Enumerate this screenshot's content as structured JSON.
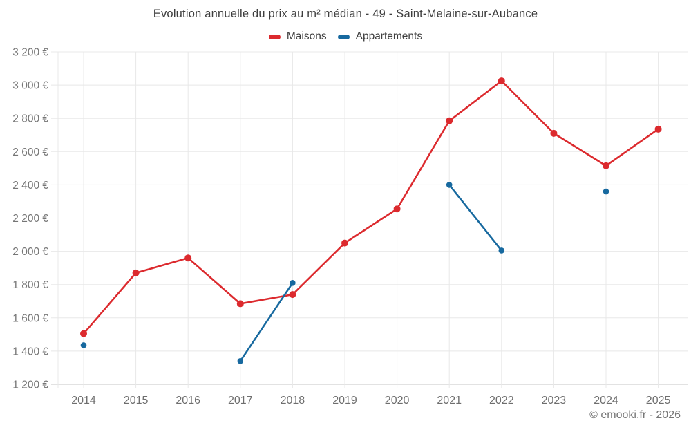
{
  "title": "Evolution annuelle du prix au m² médian - 49 - Saint-Melaine-sur-Aubance",
  "footer": "© emooki.fr - 2026",
  "colors": {
    "maisons": "#dc2a2e",
    "appartements": "#17699f",
    "grid": "#e8e8e8",
    "axis_line": "#c6c6c6",
    "tick_label": "#757575",
    "x_label": "#6e6e6e"
  },
  "legend": [
    {
      "id": "maisons",
      "label": "Maisons",
      "color": "#dc2a2e"
    },
    {
      "id": "appartements",
      "label": "Appartements",
      "color": "#17699f"
    }
  ],
  "chart_data": {
    "type": "line",
    "title": "Evolution annuelle du prix au m² médian - 49 - Saint-Melaine-sur-Aubance",
    "xlabel": "",
    "ylabel": "",
    "categories": [
      "2014",
      "2015",
      "2016",
      "2017",
      "2018",
      "2019",
      "2020",
      "2021",
      "2022",
      "2023",
      "2024",
      "2025"
    ],
    "series": [
      {
        "name": "Maisons",
        "color": "#dc2a2e",
        "values": [
          1505,
          1870,
          1960,
          1685,
          1740,
          2050,
          2255,
          2785,
          3025,
          2710,
          2515,
          2735
        ]
      },
      {
        "name": "Appartements",
        "color": "#17699f",
        "values": [
          1435,
          null,
          null,
          1340,
          1810,
          null,
          null,
          2400,
          2005,
          null,
          2360,
          null
        ]
      }
    ],
    "ylim": [
      1200,
      3200
    ],
    "ytick_step": 200,
    "yticks": [
      {
        "value": 1200,
        "label": "1 200 €"
      },
      {
        "value": 1400,
        "label": "1 400 €"
      },
      {
        "value": 1600,
        "label": "1 600 €"
      },
      {
        "value": 1800,
        "label": "1 800 €"
      },
      {
        "value": 2000,
        "label": "2 000 €"
      },
      {
        "value": 2200,
        "label": "2 200 €"
      },
      {
        "value": 2400,
        "label": "2 400 €"
      },
      {
        "value": 2600,
        "label": "2 600 €"
      },
      {
        "value": 2800,
        "label": "2 800 €"
      },
      {
        "value": 3000,
        "label": "3 000 €"
      },
      {
        "value": 3200,
        "label": "3 200 €"
      }
    ],
    "grid": true,
    "legend_position": "top",
    "unit": "€"
  }
}
